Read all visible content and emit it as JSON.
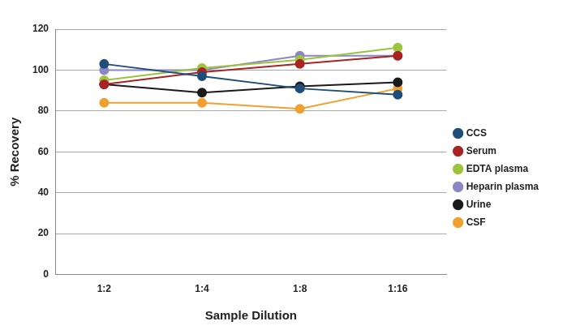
{
  "chart_data": {
    "type": "line",
    "x_label": "Sample Dilution",
    "y_label": "% Recovery",
    "categories": [
      "1:2",
      "1:4",
      "1:8",
      "1:16"
    ],
    "series": [
      {
        "name": "CCS",
        "color": "#1f4e79",
        "values": [
          103,
          97,
          91,
          88
        ]
      },
      {
        "name": "Serum",
        "color": "#a82424",
        "values": [
          93,
          99,
          103,
          107
        ]
      },
      {
        "name": "EDTA plasma",
        "color": "#9bc43c",
        "values": [
          95,
          101,
          105,
          111
        ]
      },
      {
        "name": "Heparin plasma",
        "color": "#8c86c6",
        "values": [
          100,
          100,
          107,
          107
        ]
      },
      {
        "name": "Urine",
        "color": "#1a1a1a",
        "values": [
          93,
          89,
          92,
          94
        ]
      },
      {
        "name": "CSF",
        "color": "#f0a030",
        "values": [
          84,
          84,
          81,
          91
        ]
      }
    ],
    "ylim": [
      0,
      120
    ],
    "yticks": [
      0,
      20,
      40,
      60,
      80,
      100,
      120
    ],
    "grid": true,
    "legend": "right",
    "marker": "circle"
  }
}
